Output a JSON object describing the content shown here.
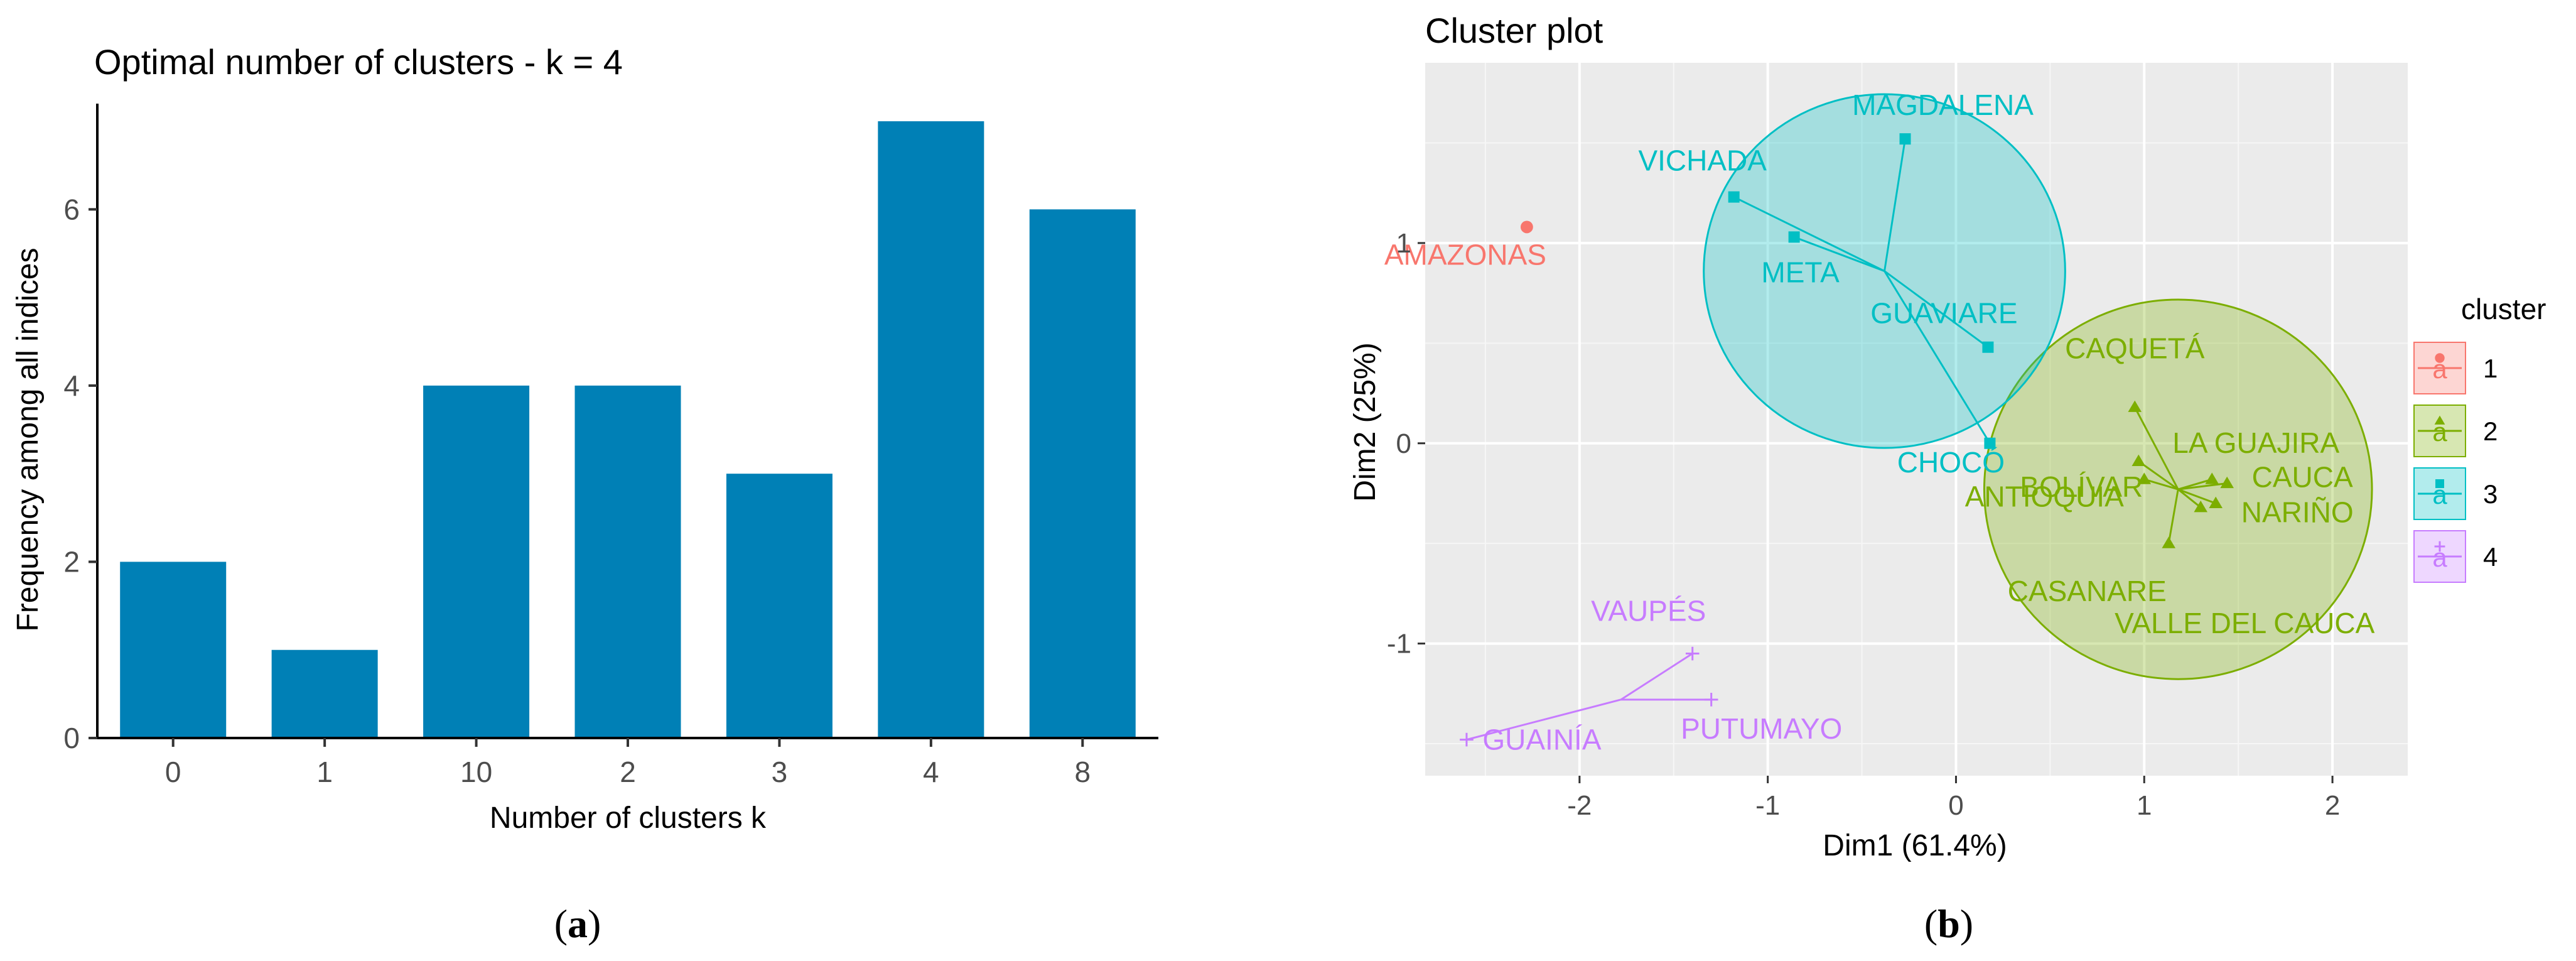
{
  "panels": {
    "a": {
      "caption_open": "(",
      "caption_letter": "a",
      "caption_close": ")"
    },
    "b": {
      "caption_open": "(",
      "caption_letter": "b",
      "caption_close": ")"
    }
  },
  "chart_data": [
    {
      "type": "bar",
      "title": "Optimal number of clusters - k = 4",
      "xlabel": "Number of clusters k",
      "ylabel": "Frequency among all indices",
      "categories": [
        "0",
        "1",
        "10",
        "2",
        "3",
        "4",
        "8"
      ],
      "values": [
        2,
        1,
        4,
        4,
        3,
        7,
        6
      ],
      "ylim": [
        0,
        7.2
      ],
      "yticks": [
        0,
        2,
        4,
        6
      ],
      "bar_color": "#0080B6",
      "grid": false
    },
    {
      "type": "scatter",
      "title": "Cluster plot",
      "xlabel": "Dim1 (61.4%)",
      "ylabel": "Dim2 (25%)",
      "xlim": [
        -2.82,
        2.4
      ],
      "ylim": [
        -1.66,
        1.9
      ],
      "xticks": [
        -2,
        -1,
        0,
        1,
        2
      ],
      "yticks": [
        -1,
        0,
        1
      ],
      "grid": true,
      "panel_background": "#EBEBEB",
      "legend": {
        "title": "cluster",
        "position": "right",
        "glyph": "a",
        "items": [
          "1",
          "2",
          "3",
          "4"
        ]
      },
      "clusters": [
        {
          "name": "1",
          "color": "#F8766D",
          "marker": "circle",
          "center": [
            -2.28,
            1.08
          ],
          "radius": 0,
          "points": [
            {
              "label": "AMAZONAS",
              "x": -2.28,
              "y": 1.08
            }
          ]
        },
        {
          "name": "2",
          "color": "#7CAE00",
          "marker": "triangle",
          "center": [
            1.18,
            -0.23
          ],
          "radius": 1.03,
          "points": [
            {
              "label": "CAQUETÁ",
              "x": 0.95,
              "y": 0.18
            },
            {
              "label": "LA GUAJIRA",
              "x": 1.36,
              "y": -0.18
            },
            {
              "label": "CAUCA",
              "x": 1.44,
              "y": -0.2
            },
            {
              "label": "BOLÍVAR",
              "x": 1.0,
              "y": -0.18
            },
            {
              "label": "ANTIOQUIA",
              "x": 0.97,
              "y": -0.09
            },
            {
              "label": "NARIÑO",
              "x": 1.38,
              "y": -0.3
            },
            {
              "label": "CASANARE",
              "x": 1.13,
              "y": -0.5
            },
            {
              "label": "VALLE DEL CAUCA",
              "x": 1.3,
              "y": -0.32
            }
          ]
        },
        {
          "name": "3",
          "color": "#00BFC4",
          "marker": "square",
          "center": [
            -0.38,
            0.86
          ],
          "radius": 0.96,
          "points": [
            {
              "label": "MAGDALENA",
              "x": -0.27,
              "y": 1.52
            },
            {
              "label": "VICHADA",
              "x": -1.18,
              "y": 1.23
            },
            {
              "label": "META",
              "x": -0.86,
              "y": 1.03
            },
            {
              "label": "GUAVIARE",
              "x": 0.17,
              "y": 0.48
            },
            {
              "label": "CHOCÓ",
              "x": 0.18,
              "y": 0.0
            }
          ]
        },
        {
          "name": "4",
          "color": "#C77CFF",
          "marker": "cross",
          "center": [
            -1.78,
            -1.28
          ],
          "radius": 0,
          "points": [
            {
              "label": "VAUPÉS",
              "x": -1.4,
              "y": -1.05
            },
            {
              "label": "PUTUMAYO",
              "x": -1.3,
              "y": -1.28
            },
            {
              "label": "GUAINÍA",
              "x": -2.6,
              "y": -1.48
            }
          ]
        }
      ]
    }
  ]
}
